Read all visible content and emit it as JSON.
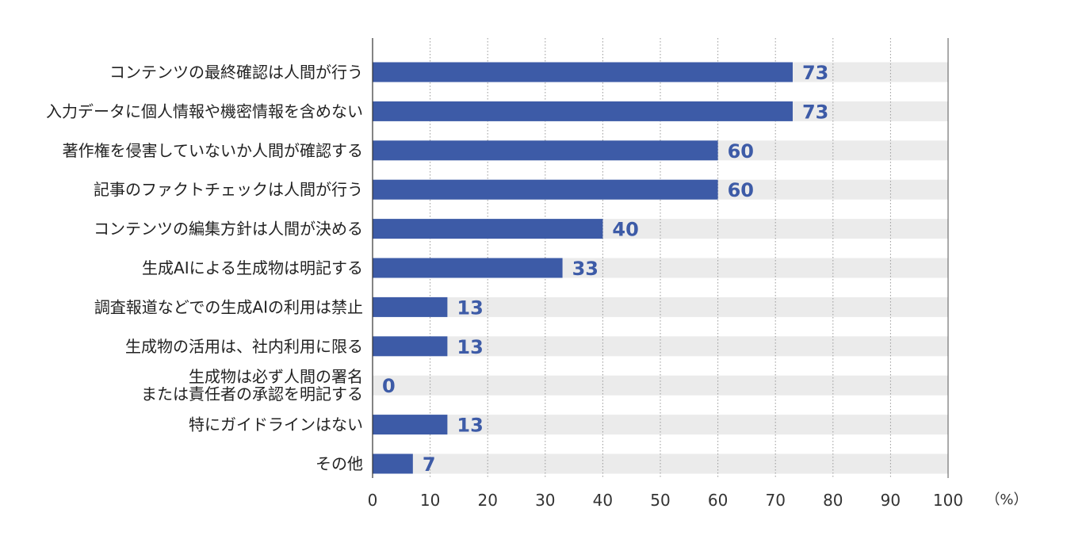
{
  "chart_data": {
    "type": "bar",
    "orientation": "horizontal",
    "categories": [
      [
        "コンテンツの最終確認は人間が行う"
      ],
      [
        "入力データに個人情報や機密情報を含めない"
      ],
      [
        "著作権を侵害していないか人間が確認する"
      ],
      [
        "記事のファクトチェックは人間が行う"
      ],
      [
        "コンテンツの編集方針は人間が決める"
      ],
      [
        "生成AIによる生成物は明記する"
      ],
      [
        "調査報道などでの生成AIの利用は禁止"
      ],
      [
        "生成物の活用は、社内利用に限る"
      ],
      [
        "生成物は必ず人間の署名",
        "または責任者の承認を明記する"
      ],
      [
        "特にガイドラインはない"
      ],
      [
        "その他"
      ]
    ],
    "values": [
      73,
      73,
      60,
      60,
      40,
      33,
      13,
      13,
      0,
      13,
      7
    ],
    "value_labels": [
      "73",
      "73",
      "60",
      "60",
      "40",
      "33",
      "13",
      "13",
      "0",
      "13",
      "7"
    ],
    "xlim": [
      0,
      100
    ],
    "xticks": [
      0,
      10,
      20,
      30,
      40,
      50,
      60,
      70,
      80,
      90,
      100
    ],
    "xtick_labels": [
      "0",
      "10",
      "20",
      "30",
      "40",
      "50",
      "60",
      "70",
      "80",
      "90",
      "100"
    ],
    "unit_label": "（%）",
    "grid": true,
    "colors": {
      "bar": "#3d5ba7",
      "background_track": "#ebebeb",
      "value_label": "#3d5ba7",
      "grid": "#999999"
    }
  }
}
